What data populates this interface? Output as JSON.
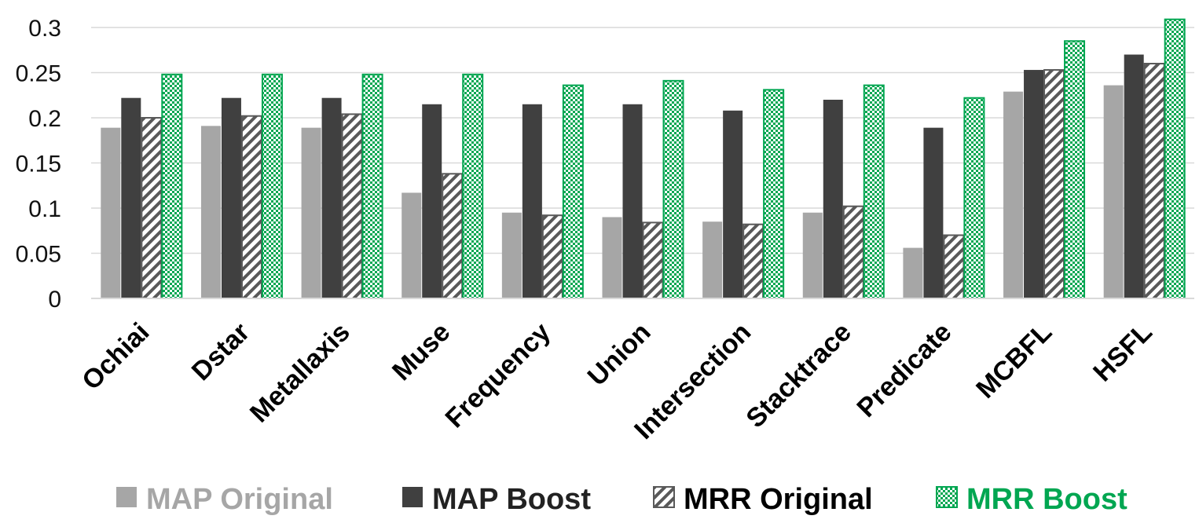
{
  "chart_data": {
    "type": "bar",
    "categories": [
      "Ochiai",
      "Dstar",
      "Metallaxis",
      "Muse",
      "Frequency",
      "Union",
      "Intersection",
      "Stacktrace",
      "Predicate",
      "MCBFL",
      "HSFL"
    ],
    "series": [
      {
        "name": "MAP Original",
        "values": [
          0.189,
          0.191,
          0.189,
          0.117,
          0.095,
          0.09,
          0.085,
          0.095,
          0.056,
          0.229,
          0.236
        ],
        "color": "#a6a6a6",
        "pattern": "solid"
      },
      {
        "name": "MAP Boost",
        "values": [
          0.222,
          0.222,
          0.222,
          0.215,
          0.215,
          0.215,
          0.208,
          0.22,
          0.189,
          0.253,
          0.27
        ],
        "color": "#404040",
        "pattern": "solid"
      },
      {
        "name": "MRR Original",
        "values": [
          0.2,
          0.202,
          0.204,
          0.138,
          0.092,
          0.084,
          0.082,
          0.102,
          0.07,
          0.253,
          0.26
        ],
        "color": "#595959",
        "pattern": "diagonal-stripes"
      },
      {
        "name": "MRR Boost",
        "values": [
          0.248,
          0.248,
          0.248,
          0.248,
          0.236,
          0.241,
          0.231,
          0.236,
          0.222,
          0.285,
          0.309
        ],
        "color": "#00a651",
        "pattern": "checker"
      }
    ],
    "yticks": [
      "0",
      "0.05",
      "0.1",
      "0.15",
      "0.2",
      "0.25",
      "0.3"
    ],
    "ylim": [
      0,
      0.3
    ],
    "grid": true,
    "legend_position": "bottom",
    "title": "",
    "xlabel": "",
    "ylabel": ""
  }
}
